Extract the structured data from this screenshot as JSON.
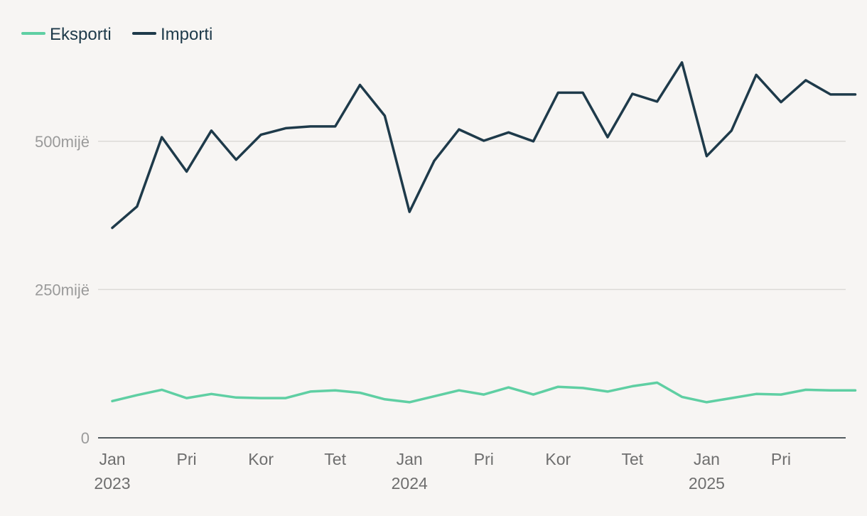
{
  "chart_data": {
    "type": "line",
    "legend_position": "top-left",
    "grid": true,
    "ylim": [
      0,
      600000
    ],
    "yticks": [
      {
        "value": 0,
        "label": "0"
      },
      {
        "value": 250000,
        "label": "250mijë"
      },
      {
        "value": 500000,
        "label": "500mijë"
      }
    ],
    "x": [
      "2023-01",
      "2023-02",
      "2023-03",
      "2023-04",
      "2023-05",
      "2023-06",
      "2023-07",
      "2023-08",
      "2023-09",
      "2023-10",
      "2023-11",
      "2023-12",
      "2024-01",
      "2024-02",
      "2024-03",
      "2024-04",
      "2024-05",
      "2024-06",
      "2024-07",
      "2024-08",
      "2024-09",
      "2024-10",
      "2024-11",
      "2024-12",
      "2025-01",
      "2025-02",
      "2025-03",
      "2025-04",
      "2025-05",
      "2025-06",
      "2025-07"
    ],
    "xticks": [
      {
        "x": "2023-01",
        "label": "Jan",
        "year": "2023"
      },
      {
        "x": "2023-04",
        "label": "Pri",
        "year": ""
      },
      {
        "x": "2023-07",
        "label": "Kor",
        "year": ""
      },
      {
        "x": "2023-10",
        "label": "Tet",
        "year": ""
      },
      {
        "x": "2024-01",
        "label": "Jan",
        "year": "2024"
      },
      {
        "x": "2024-04",
        "label": "Pri",
        "year": ""
      },
      {
        "x": "2024-07",
        "label": "Kor",
        "year": ""
      },
      {
        "x": "2024-10",
        "label": "Tet",
        "year": ""
      },
      {
        "x": "2025-01",
        "label": "Jan",
        "year": "2025"
      },
      {
        "x": "2025-04",
        "label": "Pri",
        "year": ""
      }
    ],
    "series": [
      {
        "name": "Eksporti",
        "color": "#5fcfa3",
        "values": [
          62000,
          72000,
          81000,
          67000,
          74000,
          68000,
          67000,
          67000,
          78000,
          80000,
          76000,
          65000,
          60000,
          70000,
          80000,
          73000,
          85000,
          73000,
          86000,
          84000,
          78000,
          87000,
          93000,
          69000,
          60000,
          67000,
          74000,
          73000,
          81000,
          80000,
          80000
        ]
      },
      {
        "name": "Importi",
        "color": "#1e3a4a",
        "values": [
          354000,
          390000,
          507000,
          449000,
          518000,
          469000,
          511000,
          522000,
          525000,
          525000,
          595000,
          543000,
          381000,
          467000,
          520000,
          501000,
          515000,
          500000,
          582000,
          582000,
          507000,
          580000,
          567000,
          633000,
          475000,
          518000,
          612000,
          566000,
          603000,
          579000,
          579000
        ]
      }
    ]
  }
}
